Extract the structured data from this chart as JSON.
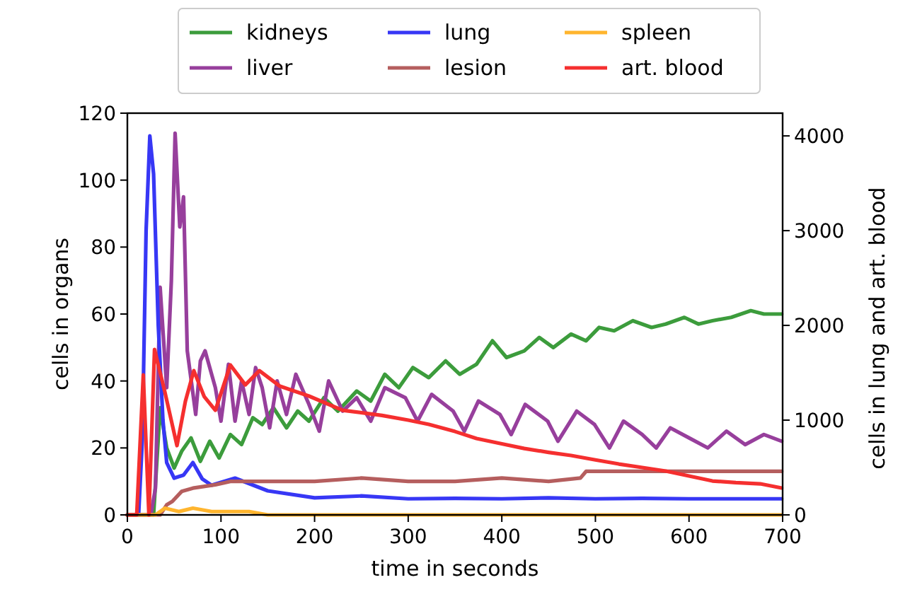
{
  "chart_data": {
    "type": "line",
    "xlabel": "time in seconds",
    "ylabel": "cells in organs",
    "y2label": "cells in lung and art. blood",
    "xlim": [
      0,
      700
    ],
    "xticks": [
      0,
      100,
      200,
      300,
      400,
      500,
      600,
      700
    ],
    "ylim": [
      0,
      120
    ],
    "yticks": [
      0,
      20,
      40,
      60,
      80,
      100,
      120
    ],
    "y2lim": [
      0,
      4240
    ],
    "y2ticks": [
      0,
      1000,
      2000,
      3000,
      4000
    ],
    "grid": false,
    "legend": "top",
    "line_style": "solid",
    "marker": "none",
    "series": [
      {
        "name": "kidneys",
        "color": "#3c9c3c",
        "x": [
          0,
          28,
          35,
          42,
          50,
          58,
          68,
          78,
          88,
          98,
          110,
          122,
          134,
          144,
          156,
          170,
          182,
          194,
          210,
          225,
          245,
          260,
          275,
          290,
          305,
          322,
          340,
          355,
          373,
          390,
          405,
          424,
          440,
          455,
          474,
          490,
          504,
          520,
          540,
          560,
          575,
          595,
          610,
          625,
          645,
          666,
          680,
          699
        ],
        "values": [
          0,
          0,
          32,
          20,
          14,
          19,
          23,
          16,
          22,
          17,
          24,
          21,
          29,
          27,
          32,
          26,
          31,
          28,
          35,
          31,
          37,
          34,
          42,
          38,
          44,
          41,
          46,
          42,
          45,
          52,
          47,
          49,
          53,
          50,
          54,
          52,
          56,
          55,
          58,
          56,
          57,
          59,
          57,
          58,
          59,
          61,
          60,
          60
        ]
      },
      {
        "name": "liver",
        "color": "#973f9c",
        "x": [
          0,
          25,
          30,
          35,
          42,
          47,
          51,
          56,
          60,
          64,
          73,
          78,
          83,
          94,
          100,
          108,
          115,
          122,
          130,
          137,
          144,
          152,
          160,
          170,
          180,
          194,
          205,
          215,
          230,
          245,
          260,
          275,
          297,
          310,
          325,
          348,
          360,
          375,
          398,
          410,
          425,
          449,
          460,
          480,
          499,
          515,
          530,
          550,
          565,
          580,
          600,
          620,
          640,
          660,
          680,
          699
        ],
        "values": [
          0,
          0,
          8,
          68,
          38,
          70,
          114,
          86,
          95,
          49,
          30,
          46,
          49,
          38,
          28,
          45,
          28,
          40,
          30,
          44,
          38,
          26,
          40,
          30,
          42,
          33,
          25,
          40,
          31,
          35,
          28,
          38,
          35,
          28,
          36,
          31,
          25,
          34,
          30,
          24,
          33,
          28,
          22,
          31,
          27,
          20,
          28,
          24,
          20,
          26,
          23,
          20,
          25,
          21,
          24,
          22
        ]
      },
      {
        "name": "lung",
        "color": "#3737f5",
        "axis": "y2",
        "x": [
          0,
          12,
          16,
          20,
          24,
          28,
          33,
          38,
          42,
          50,
          60,
          70,
          80,
          90,
          115,
          150,
          200,
          250,
          300,
          350,
          400,
          450,
          500,
          550,
          600,
          650,
          699
        ],
        "values": [
          0,
          0,
          800,
          3000,
          4000,
          3600,
          2000,
          1000,
          552,
          388,
          420,
          552,
          380,
          313,
          388,
          254,
          180,
          200,
          170,
          175,
          170,
          180,
          170,
          175,
          170,
          170,
          170
        ]
      },
      {
        "name": "lesion",
        "color": "#b55e5e",
        "x": [
          0,
          35,
          42,
          48,
          58,
          70,
          94,
          110,
          144,
          200,
          250,
          300,
          350,
          400,
          450,
          484,
          490,
          550,
          600,
          650,
          699
        ],
        "values": [
          0,
          0,
          3,
          4,
          7,
          8,
          9,
          10,
          10,
          10,
          11,
          10,
          10,
          11,
          10,
          11,
          13,
          13,
          13,
          13,
          13
        ]
      },
      {
        "name": "spleen",
        "color": "#ffb52e",
        "x": [
          0,
          30,
          40,
          55,
          70,
          90,
          110,
          130,
          150,
          200,
          300,
          400,
          500,
          600,
          699
        ],
        "values": [
          0,
          0,
          2,
          1,
          2,
          1,
          1,
          1,
          0,
          0,
          0,
          0,
          0,
          0,
          0
        ]
      },
      {
        "name": "art. blood",
        "color": "#f52f2f",
        "axis": "y2",
        "x": [
          0,
          10,
          17,
          23,
          29,
          40,
          53,
          62,
          71,
          82,
          94,
          110,
          126,
          141,
          163,
          194,
          230,
          272,
          300,
          322,
          350,
          373,
          400,
          424,
          450,
          474,
          500,
          525,
          550,
          575,
          600,
          625,
          650,
          676,
          699
        ],
        "values": [
          0,
          0,
          1478,
          0,
          1746,
          1300,
          731,
          1200,
          1522,
          1250,
          1104,
          1582,
          1373,
          1522,
          1358,
          1254,
          1104,
          1050,
          1000,
          955,
          880,
          806,
          750,
          701,
          660,
          627,
          580,
          537,
          500,
          463,
          410,
          358,
          340,
          328,
          284
        ]
      }
    ]
  }
}
